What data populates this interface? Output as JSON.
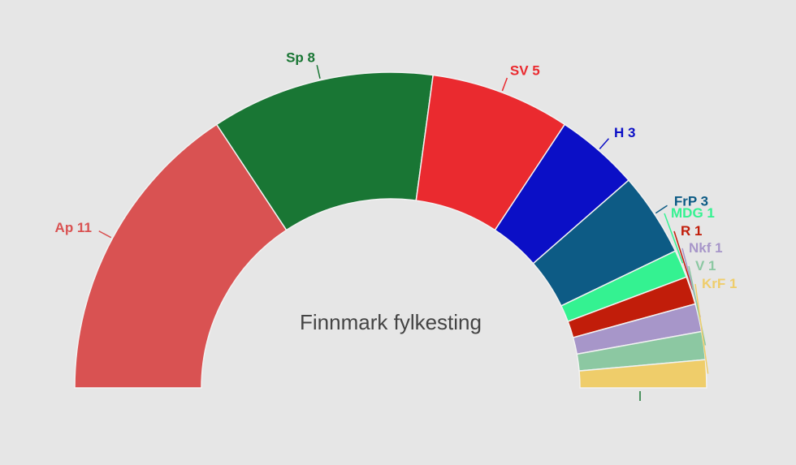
{
  "chart_data": {
    "type": "pie",
    "subtype": "parliament-half-donut",
    "title": "Finnmark fylkesting",
    "total_seats": 35,
    "series": [
      {
        "name": "Ap",
        "value": 11,
        "label": "Ap 11",
        "color": "#d95252"
      },
      {
        "name": "Sp",
        "value": 8,
        "label": "Sp 8",
        "color": "#197634"
      },
      {
        "name": "SV",
        "value": 5,
        "label": "SV 5",
        "color": "#ea2a2f"
      },
      {
        "name": "H",
        "value": 3,
        "label": "H 3",
        "color": "#0b0fc6"
      },
      {
        "name": "FrP",
        "value": 3,
        "label": "FrP 3",
        "color": "#0d5b85"
      },
      {
        "name": "MDG",
        "value": 1,
        "label": "MDG 1",
        "color": "#34f291"
      },
      {
        "name": "R",
        "value": 1,
        "label": "R 1",
        "color": "#c11d0a"
      },
      {
        "name": "Nkf",
        "value": 1,
        "label": "Nkf 1",
        "color": "#a796c9"
      },
      {
        "name": "V",
        "value": 1,
        "label": "V 1",
        "color": "#8cc8a2"
      },
      {
        "name": "KrF",
        "value": 1,
        "label": "KrF 1",
        "color": "#efcd6a"
      }
    ]
  }
}
